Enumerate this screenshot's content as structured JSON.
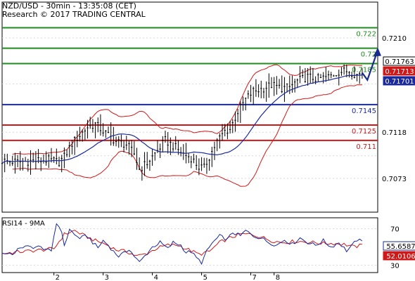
{
  "header": {
    "line1": "NZD/USD - 30min - 13:35:08 (CET)",
    "line2": "Research © 2017 TRADING CENTRAL"
  },
  "rsi_panel": {
    "label": "RSI14 - 9MA"
  },
  "colors": {
    "green": "#1e8c1e",
    "red": "#d01818",
    "blue": "#1a2a9c",
    "candle": "#000000",
    "bollinger": "#d01818",
    "ma": "#1a2a9c",
    "arrow": "#1a2a8c",
    "grid": "#d8d8d8"
  },
  "chart_data": [
    {
      "type": "candlestick",
      "instrument": "NZD/USD",
      "timeframe": "30min",
      "x_ticks": [
        "2",
        "3",
        "4",
        "5",
        "7",
        "8"
      ],
      "y_ticks": [
        "0.7210",
        "0.7118",
        "0.7073"
      ],
      "ylim": [
        0.704,
        0.7245
      ],
      "levels": [
        {
          "label": "0.722",
          "value": 0.722,
          "color": "green"
        },
        {
          "label": "0.72",
          "value": 0.72,
          "color": "green"
        },
        {
          "label": "0.7185",
          "value": 0.7185,
          "color": "green"
        },
        {
          "label": "0.7145",
          "value": 0.7145,
          "color": "blue"
        },
        {
          "label": "0.7125",
          "value": 0.7125,
          "color": "red"
        },
        {
          "label": "0.711",
          "value": 0.711,
          "color": "red"
        }
      ],
      "price_tags": [
        {
          "label": "0.71763",
          "value": 0.71763,
          "style": "black"
        },
        {
          "label": "0.71713",
          "value": 0.71713,
          "style": "red"
        },
        {
          "label": "0.71701",
          "value": 0.71701,
          "style": "blue"
        }
      ],
      "close_path": [
        [
          0,
          0.709
        ],
        [
          6,
          0.7089
        ],
        [
          12,
          0.709
        ],
        [
          18,
          0.7091
        ],
        [
          22,
          0.7089
        ],
        [
          24,
          0.7094
        ],
        [
          27,
          0.7107
        ],
        [
          30,
          0.7115
        ],
        [
          33,
          0.7123
        ],
        [
          36,
          0.7126
        ],
        [
          40,
          0.7117
        ],
        [
          44,
          0.7109
        ],
        [
          48,
          0.7106
        ],
        [
          51,
          0.7097
        ],
        [
          53,
          0.7082
        ],
        [
          56,
          0.7088
        ],
        [
          60,
          0.71
        ],
        [
          63,
          0.711
        ],
        [
          66,
          0.7105
        ],
        [
          70,
          0.7097
        ],
        [
          73,
          0.7093
        ],
        [
          76,
          0.7084
        ],
        [
          78,
          0.7083
        ],
        [
          80,
          0.7094
        ],
        [
          83,
          0.7109
        ],
        [
          86,
          0.7119
        ],
        [
          88,
          0.7121
        ],
        [
          91,
          0.7138
        ],
        [
          94,
          0.715
        ],
        [
          97,
          0.7158
        ],
        [
          100,
          0.716
        ],
        [
          104,
          0.7164
        ],
        [
          108,
          0.7161
        ],
        [
          111,
          0.7162
        ],
        [
          114,
          0.7168
        ],
        [
          118,
          0.7172
        ],
        [
          122,
          0.717
        ],
        [
          126,
          0.7172
        ],
        [
          130,
          0.7177
        ],
        [
          134,
          0.7178
        ],
        [
          137,
          0.7174
        ],
        [
          139,
          0.7176
        ]
      ],
      "projection": [
        [
          139,
          0.7176
        ],
        [
          141,
          0.7169
        ],
        [
          145,
          0.7198
        ]
      ],
      "rsi": {
        "ylim": [
          22,
          82
        ],
        "y_ticks": [
          "70",
          "30"
        ],
        "last_rsi": "55.6587",
        "last_ma": "52.0106",
        "rsi_path": [
          [
            0,
            43
          ],
          [
            5,
            43
          ],
          [
            7,
            50
          ],
          [
            11,
            50
          ],
          [
            14,
            50
          ],
          [
            17,
            48
          ],
          [
            19,
            44
          ],
          [
            20,
            62
          ],
          [
            21,
            76
          ],
          [
            23,
            68
          ],
          [
            24,
            50
          ],
          [
            26,
            70
          ],
          [
            28,
            63
          ],
          [
            30,
            60
          ],
          [
            33,
            62
          ],
          [
            35,
            55
          ],
          [
            37,
            49
          ],
          [
            39,
            57
          ],
          [
            41,
            52
          ],
          [
            43,
            45
          ],
          [
            45,
            40
          ],
          [
            47,
            43
          ],
          [
            49,
            48
          ],
          [
            51,
            40
          ],
          [
            53,
            33
          ],
          [
            55,
            40
          ],
          [
            58,
            50
          ],
          [
            61,
            55
          ],
          [
            64,
            48
          ],
          [
            66,
            55
          ],
          [
            69,
            52
          ],
          [
            71,
            44
          ],
          [
            73,
            45
          ],
          [
            75,
            38
          ],
          [
            77,
            33
          ],
          [
            79,
            45
          ],
          [
            81,
            54
          ],
          [
            84,
            62
          ],
          [
            87,
            58
          ],
          [
            89,
            66
          ],
          [
            92,
            62
          ],
          [
            94,
            68
          ],
          [
            97,
            62
          ],
          [
            100,
            60
          ],
          [
            103,
            55
          ],
          [
            106,
            52
          ],
          [
            109,
            58
          ],
          [
            112,
            53
          ],
          [
            115,
            60
          ],
          [
            118,
            55
          ],
          [
            121,
            52
          ],
          [
            124,
            57
          ],
          [
            127,
            50
          ],
          [
            130,
            55
          ],
          [
            133,
            46
          ],
          [
            135,
            51
          ],
          [
            137,
            58
          ],
          [
            139,
            55.66
          ]
        ],
        "ma_path": [
          [
            0,
            43
          ],
          [
            20,
            48
          ],
          [
            24,
            64
          ],
          [
            28,
            68
          ],
          [
            32,
            62
          ],
          [
            36,
            57
          ],
          [
            40,
            53
          ],
          [
            44,
            47
          ],
          [
            48,
            45
          ],
          [
            52,
            40
          ],
          [
            56,
            43
          ],
          [
            60,
            49
          ],
          [
            64,
            52
          ],
          [
            68,
            52
          ],
          [
            72,
            47
          ],
          [
            76,
            42
          ],
          [
            80,
            45
          ],
          [
            84,
            55
          ],
          [
            88,
            60
          ],
          [
            92,
            64
          ],
          [
            96,
            64
          ],
          [
            100,
            61
          ],
          [
            104,
            57
          ],
          [
            108,
            55
          ],
          [
            112,
            56
          ],
          [
            116,
            56
          ],
          [
            120,
            55
          ],
          [
            124,
            54
          ],
          [
            128,
            54
          ],
          [
            132,
            53
          ],
          [
            136,
            50
          ],
          [
            139,
            52.01
          ]
        ]
      }
    }
  ]
}
